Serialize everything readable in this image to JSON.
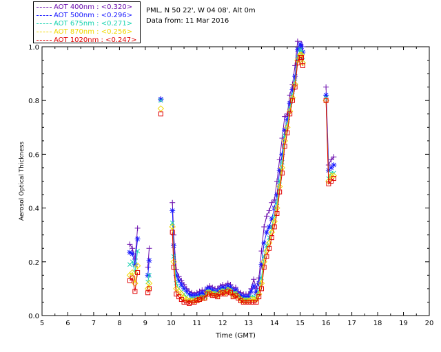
{
  "legend": [
    {
      "label": "AOT  400nm : <0.320>",
      "color": "#6a0dad"
    },
    {
      "label": "AOT  500nm : <0.296>",
      "color": "#1a1aff"
    },
    {
      "label": "AOT  675nm : <0.271>",
      "color": "#18d3b0"
    },
    {
      "label": "AOT  870nm : <0.256>",
      "color": "#f0d800"
    },
    {
      "label": "AOT 1020nm : <0.247>",
      "color": "#e00000"
    }
  ],
  "info": {
    "location": "PML, N 50 22', W 04 08', Alt 0m",
    "date": "Data from: 11 Mar 2016"
  },
  "chart_data": {
    "type": "line",
    "xlabel": "Time (GMT)",
    "ylabel": "Aerosol Optical Thickness",
    "xlim": [
      5,
      20
    ],
    "ylim": [
      0.0,
      1.0
    ],
    "xticks": [
      5,
      6,
      7,
      8,
      9,
      10,
      11,
      12,
      13,
      14,
      15,
      16,
      17,
      18,
      19,
      20
    ],
    "yticks": [
      "0.0",
      "0.2",
      "0.4",
      "0.6",
      "0.8",
      "1.0"
    ],
    "x": [
      8.4,
      8.5,
      8.6,
      8.7,
      9.1,
      9.15,
      9.6,
      10.05,
      10.1,
      10.2,
      10.3,
      10.4,
      10.5,
      10.6,
      10.7,
      10.8,
      10.9,
      11.0,
      11.1,
      11.2,
      11.3,
      11.4,
      11.5,
      11.6,
      11.7,
      11.8,
      11.9,
      12.0,
      12.1,
      12.2,
      12.3,
      12.4,
      12.5,
      12.6,
      12.7,
      12.8,
      12.9,
      13.0,
      13.1,
      13.2,
      13.3,
      13.4,
      13.5,
      13.6,
      13.7,
      13.8,
      13.9,
      14.0,
      14.1,
      14.2,
      14.3,
      14.4,
      14.5,
      14.6,
      14.7,
      14.8,
      14.9,
      15.0,
      15.05,
      15.1,
      16.0,
      16.1,
      16.2,
      16.3
    ],
    "series": [
      {
        "name": "AOT  400nm : <0.320>",
        "color": "#6a0dad",
        "values": [
          0.265,
          0.25,
          0.21,
          0.325,
          0.18,
          0.25,
          0.805,
          0.42,
          0.3,
          0.17,
          0.145,
          0.13,
          0.115,
          0.1,
          0.09,
          0.085,
          0.08,
          0.085,
          0.09,
          0.095,
          0.09,
          0.105,
          0.11,
          0.105,
          0.1,
          0.1,
          0.11,
          0.115,
          0.11,
          0.12,
          0.115,
          0.1,
          0.105,
          0.09,
          0.085,
          0.08,
          0.08,
          0.08,
          0.1,
          0.135,
          0.1,
          0.14,
          0.24,
          0.33,
          0.37,
          0.39,
          0.42,
          0.43,
          0.5,
          0.58,
          0.66,
          0.74,
          0.75,
          0.82,
          0.86,
          0.93,
          1.02,
          1.06,
          1.03,
          1.0,
          0.85,
          0.56,
          0.58,
          0.59
        ]
      },
      {
        "name": "AOT  500nm : <0.296>",
        "color": "#1a1aff",
        "values": [
          0.235,
          0.23,
          0.19,
          0.285,
          0.15,
          0.205,
          0.805,
          0.39,
          0.26,
          0.15,
          0.13,
          0.115,
          0.1,
          0.09,
          0.08,
          0.075,
          0.075,
          0.075,
          0.08,
          0.085,
          0.08,
          0.1,
          0.1,
          0.095,
          0.09,
          0.09,
          0.1,
          0.105,
          0.1,
          0.11,
          0.105,
          0.09,
          0.095,
          0.08,
          0.075,
          0.07,
          0.07,
          0.07,
          0.09,
          0.11,
          0.085,
          0.12,
          0.19,
          0.27,
          0.31,
          0.33,
          0.36,
          0.4,
          0.45,
          0.54,
          0.6,
          0.69,
          0.73,
          0.79,
          0.84,
          0.89,
          0.99,
          1.01,
          1.0,
          0.98,
          0.82,
          0.54,
          0.55,
          0.56
        ]
      },
      {
        "name": "AOT  675nm : <0.271>",
        "color": "#18d3b0",
        "values": [
          0.19,
          0.2,
          0.16,
          0.24,
          0.125,
          0.15,
          0.8,
          0.345,
          0.22,
          0.12,
          0.1,
          0.09,
          0.08,
          0.07,
          0.06,
          0.065,
          0.06,
          0.065,
          0.07,
          0.07,
          0.07,
          0.09,
          0.09,
          0.085,
          0.085,
          0.08,
          0.09,
          0.095,
          0.09,
          0.1,
          0.095,
          0.08,
          0.085,
          0.075,
          0.065,
          0.06,
          0.06,
          0.06,
          0.07,
          0.07,
          0.065,
          0.09,
          0.14,
          0.22,
          0.26,
          0.29,
          0.33,
          0.37,
          0.42,
          0.5,
          0.57,
          0.67,
          0.71,
          0.77,
          0.82,
          0.87,
          0.96,
          0.99,
          0.98,
          0.95,
          0.81,
          0.51,
          0.53,
          0.53
        ]
      },
      {
        "name": "AOT  870nm : <0.256>",
        "color": "#f0d800",
        "values": [
          0.15,
          0.16,
          0.12,
          0.185,
          0.1,
          0.12,
          0.77,
          0.33,
          0.2,
          0.1,
          0.09,
          0.08,
          0.065,
          0.06,
          0.055,
          0.055,
          0.055,
          0.06,
          0.06,
          0.065,
          0.065,
          0.085,
          0.085,
          0.08,
          0.08,
          0.075,
          0.085,
          0.09,
          0.085,
          0.095,
          0.09,
          0.075,
          0.08,
          0.07,
          0.06,
          0.055,
          0.055,
          0.055,
          0.06,
          0.06,
          0.06,
          0.08,
          0.12,
          0.2,
          0.24,
          0.27,
          0.31,
          0.35,
          0.4,
          0.48,
          0.55,
          0.65,
          0.7,
          0.76,
          0.81,
          0.86,
          0.95,
          0.97,
          0.97,
          0.94,
          0.8,
          0.5,
          0.52,
          0.52
        ]
      },
      {
        "name": "AOT 1020nm : <0.247>",
        "color": "#e00000",
        "values": [
          0.13,
          0.14,
          0.09,
          0.16,
          0.085,
          0.1,
          0.75,
          0.31,
          0.18,
          0.08,
          0.07,
          0.06,
          0.05,
          0.05,
          0.045,
          0.05,
          0.05,
          0.055,
          0.06,
          0.065,
          0.065,
          0.08,
          0.08,
          0.075,
          0.075,
          0.07,
          0.08,
          0.085,
          0.08,
          0.09,
          0.085,
          0.07,
          0.075,
          0.065,
          0.055,
          0.05,
          0.05,
          0.05,
          0.05,
          0.05,
          0.05,
          0.07,
          0.1,
          0.18,
          0.22,
          0.25,
          0.29,
          0.33,
          0.38,
          0.46,
          0.53,
          0.63,
          0.68,
          0.75,
          0.8,
          0.85,
          0.94,
          0.96,
          0.96,
          0.93,
          0.8,
          0.49,
          0.5,
          0.51
        ]
      }
    ]
  }
}
